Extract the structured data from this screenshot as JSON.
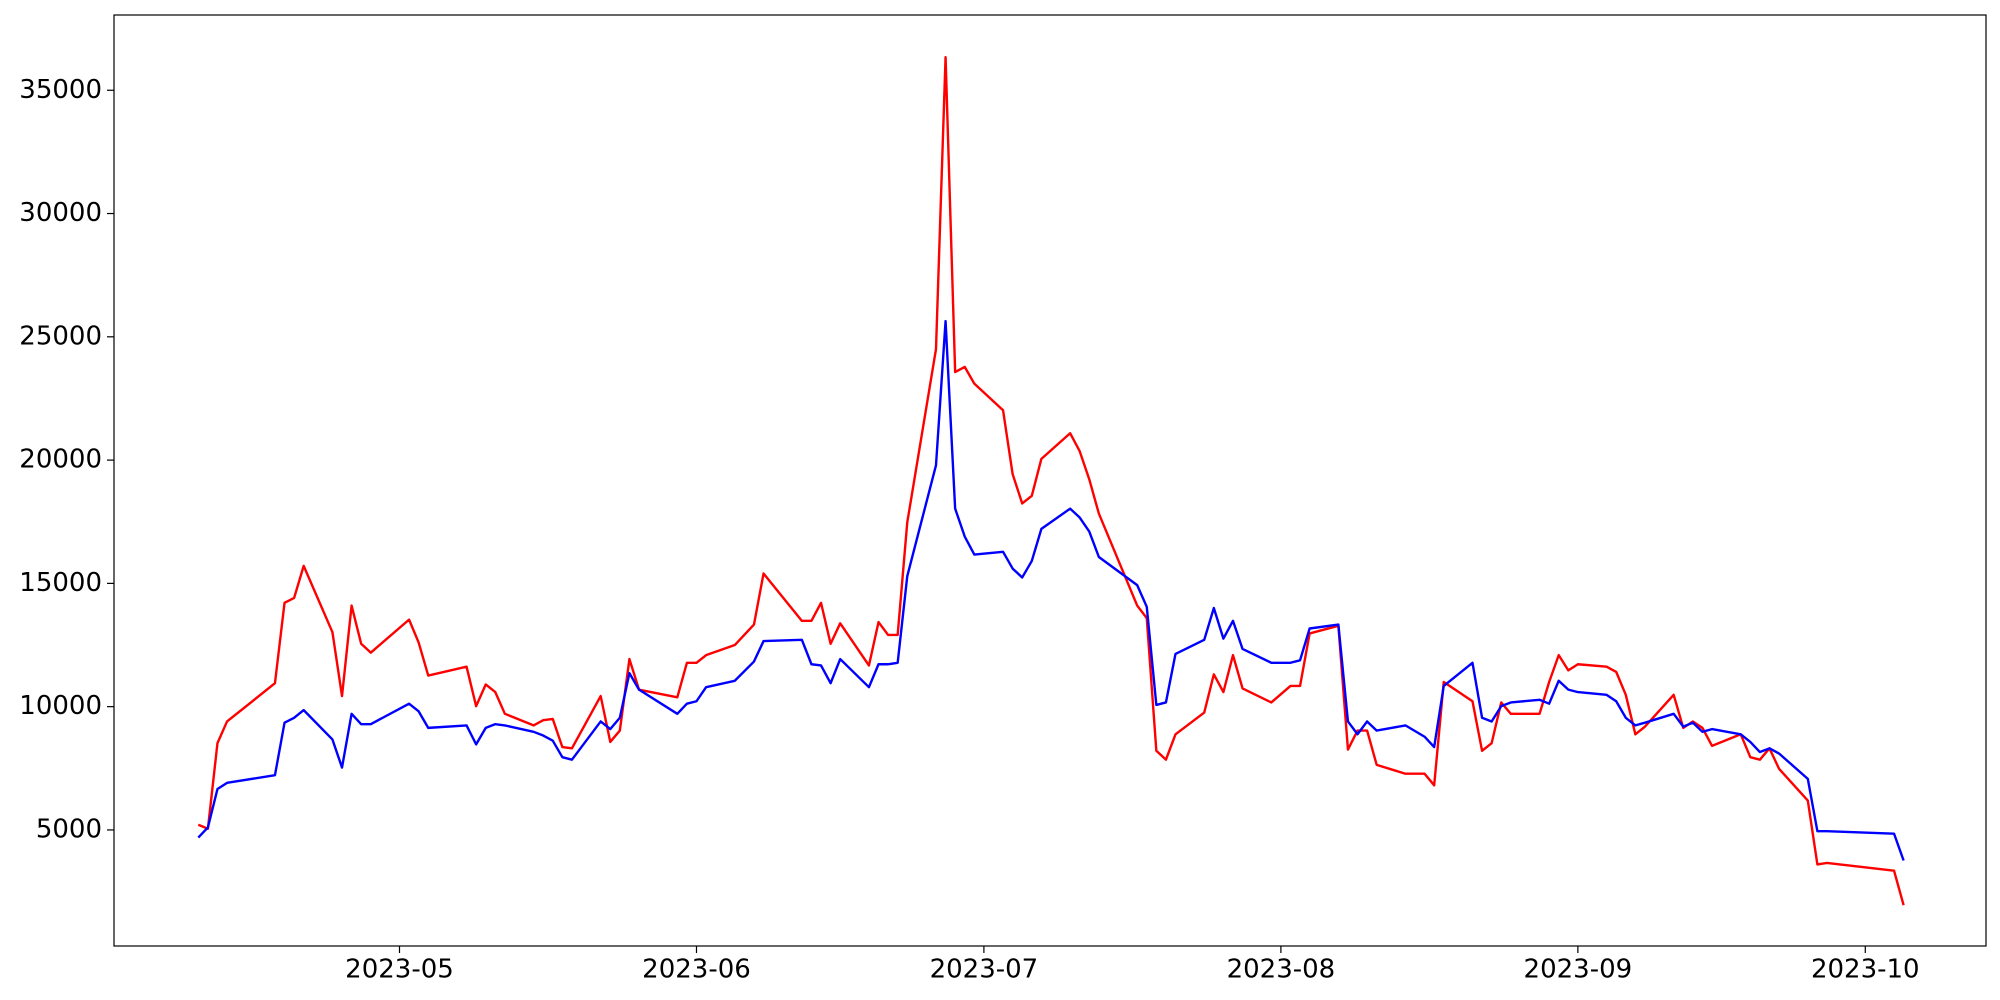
{
  "chart_data": {
    "type": "line",
    "x": [
      100,
      101,
      102,
      103,
      108,
      109,
      110,
      111,
      114,
      115,
      116,
      117,
      118,
      122,
      123,
      124,
      128,
      129,
      130,
      131,
      132,
      135,
      136,
      137,
      138,
      139,
      142,
      143,
      144,
      145,
      146,
      150,
      151,
      152,
      153,
      156,
      158,
      159,
      163,
      164,
      165,
      166,
      167,
      170,
      171,
      172,
      173,
      174,
      177,
      178,
      179,
      180,
      181,
      184,
      185,
      186,
      187,
      188,
      191,
      192,
      193,
      194,
      198,
      199,
      200,
      201,
      202,
      205,
      206,
      207,
      208,
      209,
      212,
      214,
      215,
      216,
      219,
      220,
      221,
      222,
      223,
      226,
      228,
      229,
      230,
      233,
      234,
      235,
      236,
      237,
      240,
      241,
      242,
      243,
      244,
      247,
      248,
      249,
      250,
      251,
      254,
      255,
      256,
      257,
      258,
      261,
      262,
      263,
      264,
      265,
      268,
      269,
      270,
      277,
      278
    ],
    "series": [
      {
        "color": "#ff0000",
        "values": [
          5210,
          5050,
          8520,
          9400,
          10950,
          14210,
          14410,
          15710,
          13020,
          10430,
          14100,
          12550,
          12190,
          13530,
          12600,
          11260,
          11620,
          10020,
          10900,
          10590,
          9710,
          9240,
          9450,
          9500,
          8360,
          8310,
          10430,
          8570,
          9030,
          11930,
          10690,
          10380,
          11780,
          11780,
          12090,
          12500,
          13330,
          15400,
          13480,
          13480,
          14210,
          12550,
          13380,
          11670,
          13430,
          12910,
          12910,
          17470,
          24500,
          36340,
          23570,
          23780,
          23100,
          22020,
          19430,
          18240,
          18550,
          20050,
          21090,
          20360,
          19220,
          17830,
          14100,
          13590,
          8210,
          7850,
          8880,
          9760,
          11310,
          10590,
          12090,
          10740,
          10170,
          10840,
          10840,
          12970,
          13280,
          8260,
          9030,
          9030,
          7640,
          7280,
          7280,
          6810,
          11000,
          10220,
          8210,
          8520,
          10170,
          9710,
          9710,
          11000,
          12090,
          11470,
          11720,
          11620,
          11410,
          10480,
          8880,
          9190,
          10480,
          9140,
          9400,
          9140,
          8410,
          8880,
          7950,
          7850,
          8310,
          7480,
          6190,
          3600,
          3660,
          3350,
          1950
        ]
      },
      {
        "color": "#0000ff",
        "values": [
          4690,
          5100,
          6660,
          6910,
          7220,
          9350,
          9550,
          9860,
          8670,
          7530,
          9710,
          9290,
          9290,
          10120,
          9810,
          9140,
          9240,
          8470,
          9140,
          9290,
          9240,
          8980,
          8830,
          8620,
          7950,
          7850,
          9400,
          9090,
          9550,
          11360,
          10690,
          9710,
          10120,
          10220,
          10790,
          11050,
          11830,
          12660,
          12710,
          11720,
          11670,
          10950,
          11930,
          10790,
          11720,
          11720,
          11780,
          15290,
          19790,
          25640,
          18030,
          16900,
          16170,
          16280,
          15600,
          15240,
          15910,
          17210,
          18030,
          17670,
          17100,
          16070,
          14930,
          14050,
          10070,
          10170,
          12140,
          12710,
          14000,
          12760,
          13480,
          12340,
          11780,
          11780,
          11880,
          13170,
          13330,
          9400,
          8880,
          9400,
          9030,
          9240,
          8780,
          8360,
          10840,
          11780,
          9550,
          9400,
          10020,
          10170,
          10280,
          10120,
          11050,
          10690,
          10590,
          10480,
          10220,
          9550,
          9240,
          9350,
          9710,
          9190,
          9350,
          8980,
          9090,
          8880,
          8570,
          8160,
          8310,
          8100,
          7070,
          4950,
          4950,
          4850,
          3760
        ]
      }
    ],
    "xlim": [
      91.2,
      286.6
    ],
    "xticks": [
      {
        "value": 121,
        "label": "2023-05"
      },
      {
        "value": 152,
        "label": "2023-06"
      },
      {
        "value": 182,
        "label": "2023-07"
      },
      {
        "value": 213,
        "label": "2023-08"
      },
      {
        "value": 244,
        "label": "2023-09"
      },
      {
        "value": 274,
        "label": "2023-10"
      }
    ],
    "ylim": [
      293,
      38052
    ],
    "yticks": [
      5000,
      10000,
      15000,
      20000,
      25000,
      30000,
      35000
    ]
  }
}
